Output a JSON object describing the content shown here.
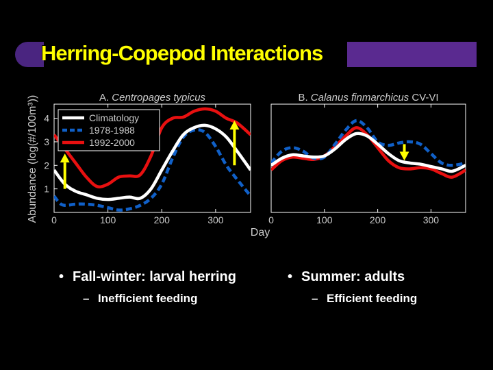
{
  "slide": {
    "title": "Herring-Copepod Interactions",
    "colors": {
      "title": "#ffff00",
      "accent_purple": "#5a2a90",
      "background": "#000000"
    }
  },
  "chart_shared": {
    "ylabel": "Abundance (log(#/100m³))",
    "xlabel": "Day",
    "legend": [
      {
        "name": "Climatology",
        "color": "#ffffff",
        "style": "solid"
      },
      {
        "name": "1978-1988",
        "color": "#1060c8",
        "style": "dashed"
      },
      {
        "name": "1992-2000",
        "color": "#e81010",
        "style": "solid"
      }
    ]
  },
  "chart_data": [
    {
      "type": "line",
      "title_prefix": "A. ",
      "title_species": "Centropages typicus",
      "xlim": [
        0,
        365
      ],
      "ylim": [
        0,
        4.6
      ],
      "xticks": [
        0,
        100,
        200,
        300
      ],
      "yticks": [
        1,
        2,
        3,
        4
      ],
      "legend_position": "top-left",
      "series": [
        {
          "name": "Climatology",
          "x": [
            0,
            20,
            40,
            60,
            80,
            100,
            120,
            140,
            160,
            180,
            200,
            220,
            240,
            260,
            280,
            300,
            320,
            340,
            365
          ],
          "y": [
            1.8,
            1.2,
            0.9,
            0.75,
            0.6,
            0.55,
            0.6,
            0.65,
            0.6,
            1.0,
            1.8,
            2.6,
            3.3,
            3.6,
            3.7,
            3.55,
            3.2,
            2.6,
            1.8
          ]
        },
        {
          "name": "1978-1988",
          "x": [
            0,
            10,
            20,
            40,
            60,
            80,
            100,
            120,
            140,
            160,
            180,
            200,
            220,
            240,
            260,
            280,
            300,
            320,
            340,
            365
          ],
          "y": [
            0.7,
            0.4,
            0.3,
            0.35,
            0.35,
            0.3,
            0.2,
            0.1,
            0.15,
            0.3,
            0.6,
            1.2,
            2.3,
            3.2,
            3.5,
            3.4,
            2.8,
            2.0,
            1.4,
            0.7
          ]
        },
        {
          "name": "1992-2000",
          "x": [
            0,
            20,
            40,
            60,
            80,
            100,
            120,
            140,
            160,
            180,
            200,
            220,
            240,
            260,
            280,
            300,
            320,
            340,
            365
          ],
          "y": [
            3.3,
            2.7,
            2.1,
            1.5,
            1.1,
            1.2,
            1.5,
            1.55,
            1.6,
            2.4,
            3.6,
            4.0,
            4.05,
            4.3,
            4.4,
            4.3,
            4.0,
            3.8,
            3.3
          ]
        }
      ],
      "arrows": [
        {
          "x": 20,
          "y1": 1.0,
          "y2": 2.5,
          "direction": "up"
        },
        {
          "x": 335,
          "y1": 2.0,
          "y2": 3.9,
          "direction": "up"
        }
      ]
    },
    {
      "type": "line",
      "title_prefix": "B. ",
      "title_species": "Calanus finmarchicus",
      "title_suffix": " CV-VI",
      "xlim": [
        0,
        365
      ],
      "ylim": [
        0,
        4.6
      ],
      "xticks": [
        0,
        100,
        200,
        300
      ],
      "yticks": [],
      "series": [
        {
          "name": "Climatology",
          "x": [
            0,
            20,
            40,
            60,
            80,
            100,
            120,
            140,
            160,
            180,
            200,
            220,
            240,
            260,
            280,
            300,
            320,
            340,
            365
          ],
          "y": [
            2.0,
            2.3,
            2.45,
            2.4,
            2.35,
            2.4,
            2.7,
            3.1,
            3.35,
            3.25,
            2.9,
            2.5,
            2.2,
            2.1,
            2.05,
            1.95,
            1.85,
            1.75,
            2.0
          ]
        },
        {
          "name": "1978-1988",
          "x": [
            0,
            20,
            40,
            60,
            80,
            100,
            120,
            140,
            160,
            180,
            200,
            220,
            240,
            260,
            280,
            300,
            320,
            340,
            365
          ],
          "y": [
            2.1,
            2.6,
            2.75,
            2.6,
            2.3,
            2.35,
            2.9,
            3.5,
            3.9,
            3.6,
            3.0,
            2.85,
            2.95,
            3.0,
            2.9,
            2.5,
            2.1,
            2.0,
            2.1
          ]
        },
        {
          "name": "1992-2000",
          "x": [
            0,
            20,
            40,
            60,
            80,
            100,
            120,
            140,
            160,
            180,
            200,
            220,
            240,
            260,
            280,
            300,
            320,
            340,
            365
          ],
          "y": [
            1.8,
            2.2,
            2.35,
            2.3,
            2.25,
            2.4,
            2.8,
            3.25,
            3.6,
            3.3,
            2.75,
            2.2,
            1.9,
            1.85,
            1.9,
            1.85,
            1.65,
            1.5,
            1.8
          ]
        }
      ],
      "arrows": [
        {
          "x": 250,
          "y1": 2.9,
          "y2": 2.2,
          "direction": "down"
        }
      ]
    }
  ],
  "bullets": [
    {
      "text": "Fall-winter: larval herring",
      "sub": "Inefficient feeding"
    },
    {
      "text": "Summer: adults",
      "sub": "Efficient feeding"
    }
  ],
  "symbols": {
    "bullet": "•",
    "dash": "–"
  }
}
